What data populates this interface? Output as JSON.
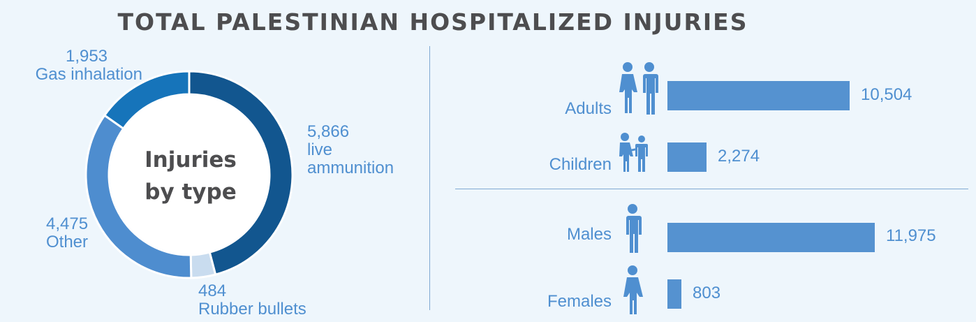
{
  "title": "TOTAL PALESTINIAN HOSPITALIZED INJURIES",
  "donut": {
    "center_line1": "Injuries",
    "center_line2": "by type"
  },
  "chart_data": [
    {
      "type": "pie",
      "variant": "donut",
      "center_label": "Injuries by type",
      "slices": [
        {
          "value": 5866,
          "value_label": "5,866",
          "label": "live ammunition",
          "color": "#12568f"
        },
        {
          "value": 484,
          "value_label": "484",
          "label": "Rubber bullets",
          "color": "#c9dcef"
        },
        {
          "value": 4475,
          "value_label": "4,475",
          "label": "Other",
          "color": "#4e8dcf"
        },
        {
          "value": 1953,
          "value_label": "1,953",
          "label": "Gas inhalation",
          "color": "#1674ba"
        }
      ]
    },
    {
      "type": "bar",
      "orientation": "horizontal",
      "groups": [
        {
          "categories": [
            "Adults",
            "Children"
          ],
          "values": [
            10504,
            2274
          ],
          "value_labels": [
            "10,504",
            "2,274"
          ]
        },
        {
          "categories": [
            "Males",
            "Females"
          ],
          "values": [
            11975,
            803
          ],
          "value_labels": [
            "11,975",
            "803"
          ]
        }
      ],
      "color": "#5592d0"
    }
  ],
  "icons": {
    "adults": "adults-couple-icon",
    "children": "children-pair-icon",
    "males": "male-person-icon",
    "females": "female-person-icon"
  }
}
